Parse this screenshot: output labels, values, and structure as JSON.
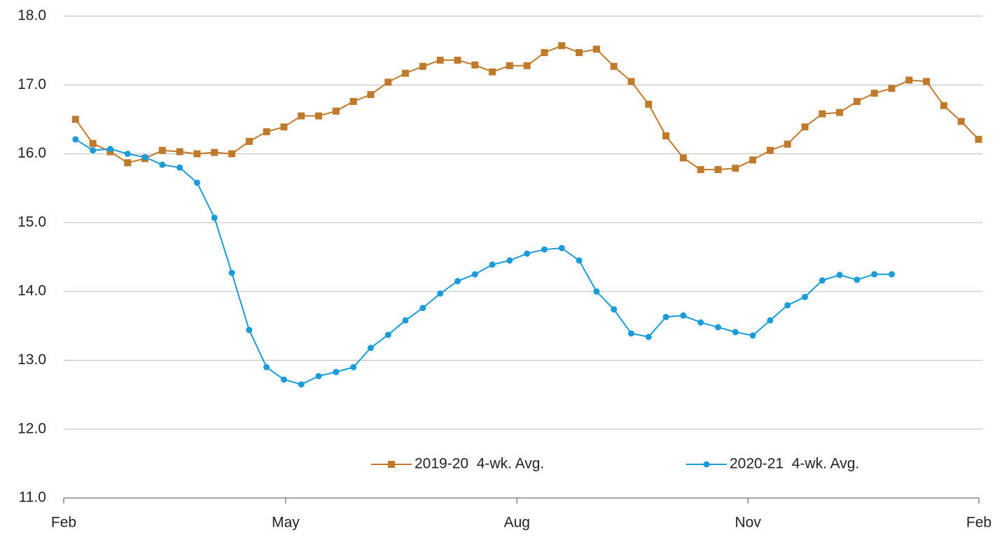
{
  "chart_data": {
    "type": "line",
    "x": [
      0.68,
      1.68,
      2.68,
      3.68,
      4.68,
      5.68,
      6.68,
      7.68,
      8.68,
      9.68,
      10.68,
      11.68,
      12.68,
      13.68,
      14.68,
      15.68,
      16.68,
      17.68,
      18.68,
      19.68,
      20.68,
      21.68,
      22.68,
      23.68,
      24.68,
      25.68,
      26.68,
      27.68,
      28.68,
      29.68,
      30.68,
      31.68,
      32.68,
      33.68,
      34.68,
      35.68,
      36.68,
      37.68,
      38.68,
      39.68,
      40.68,
      41.68,
      42.68,
      43.68,
      44.68,
      45.68,
      46.68,
      47.68,
      48.68,
      49.68,
      50.68,
      51.68,
      52.68
    ],
    "series": [
      {
        "name": "2019-20  4-wk. Avg.",
        "color": "#c07a2c",
        "marker": "square",
        "values": [
          16.5,
          16.15,
          16.03,
          15.87,
          15.93,
          16.05,
          16.03,
          16.0,
          16.02,
          16.0,
          16.18,
          16.32,
          16.39,
          16.55,
          16.55,
          16.62,
          16.76,
          16.86,
          17.04,
          17.17,
          17.27,
          17.36,
          17.36,
          17.29,
          17.19,
          17.28,
          17.28,
          17.47,
          17.57,
          17.47,
          17.52,
          17.27,
          17.05,
          16.72,
          16.26,
          15.94,
          15.77,
          15.77,
          15.79,
          15.91,
          16.05,
          16.14,
          16.39,
          16.58,
          16.6,
          16.76,
          16.88,
          16.95,
          17.07,
          17.05,
          16.7,
          16.47,
          16.21
        ]
      },
      {
        "name": "2020-21  4-wk. Avg.",
        "color": "#1b9bd7",
        "marker": "circle",
        "values": [
          16.21,
          16.05,
          16.07,
          16.0,
          15.95,
          15.84,
          15.8,
          15.58,
          15.07,
          14.27,
          13.44,
          12.9,
          12.72,
          12.65,
          12.77,
          12.83,
          12.9,
          13.18,
          13.37,
          13.58,
          13.76,
          13.97,
          14.15,
          14.25,
          14.39,
          14.45,
          14.55,
          14.61,
          14.63,
          14.45,
          14.0,
          13.74,
          13.39,
          13.34,
          13.63,
          13.65,
          13.55,
          13.48,
          13.41,
          13.36,
          13.58,
          13.8,
          13.92,
          14.16,
          14.24,
          14.17,
          14.25,
          14.25,
          null,
          null,
          null,
          null,
          null
        ]
      }
    ],
    "xlim": [
      0,
      52.7
    ],
    "xticks": [
      {
        "value": 0,
        "label": "Feb"
      },
      {
        "value": 12.78,
        "label": "May"
      },
      {
        "value": 26.1,
        "label": "Aug"
      },
      {
        "value": 39.4,
        "label": "Nov"
      },
      {
        "value": 52.7,
        "label": "Feb"
      }
    ],
    "ylim": [
      11,
      18
    ],
    "yticks": [
      {
        "value": 11,
        "label": "11.0"
      },
      {
        "value": 12,
        "label": "12.0"
      },
      {
        "value": 13,
        "label": "13.0"
      },
      {
        "value": 14,
        "label": "14.0"
      },
      {
        "value": 15,
        "label": "15.0"
      },
      {
        "value": 16,
        "label": "16.0"
      },
      {
        "value": 17,
        "label": "17.0"
      },
      {
        "value": 18,
        "label": "18.0"
      }
    ],
    "grid": true,
    "legend": "bottom"
  }
}
